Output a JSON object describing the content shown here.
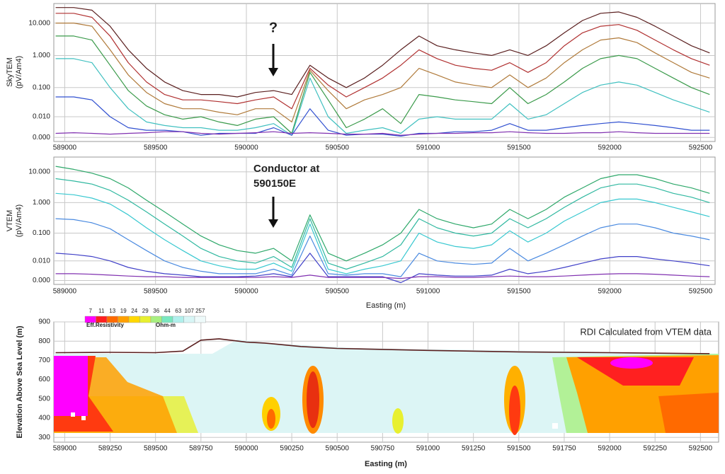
{
  "chart_data": [
    {
      "type": "line",
      "ylabel": [
        "SkyTEM",
        "(pV/Am4)"
      ],
      "annotations": [
        "?"
      ],
      "yscale": "symlog",
      "linthresh": 0.003,
      "grid": true,
      "xlim": [
        588940,
        592580
      ],
      "ylim": [
        -0.001,
        40
      ],
      "xticks": [
        589000,
        589500,
        590000,
        590500,
        591000,
        591500,
        592000,
        592500
      ],
      "yticks": [
        {
          "value": 0,
          "label": "0.000"
        },
        {
          "value": 0.01,
          "label": "0.010"
        },
        {
          "value": 0.1,
          "label": "0.100"
        },
        {
          "value": 1,
          "label": "1.000"
        },
        {
          "value": 10,
          "label": "10.000"
        }
      ],
      "x": [
        588950,
        589050,
        589150,
        589250,
        589350,
        589450,
        589550,
        589650,
        589750,
        589850,
        589950,
        590050,
        590150,
        590250,
        590350,
        590450,
        590550,
        590650,
        590750,
        590850,
        590950,
        591050,
        591150,
        591250,
        591350,
        591450,
        591550,
        591650,
        591750,
        591850,
        591950,
        592050,
        592150,
        592250,
        592350,
        592450,
        592550
      ],
      "series": [
        {
          "color": "#5a1f1f",
          "values": [
            30,
            30,
            25,
            8,
            1.5,
            0.4,
            0.15,
            0.08,
            0.06,
            0.06,
            0.05,
            0.07,
            0.08,
            0.06,
            0.5,
            0.2,
            0.1,
            0.2,
            0.5,
            1.5,
            4,
            2,
            1.5,
            1.2,
            1,
            1.5,
            1,
            2,
            5,
            12,
            20,
            22,
            15,
            8,
            4,
            2,
            1.2
          ]
        },
        {
          "color": "#b03030",
          "values": [
            20,
            20,
            15,
            4,
            0.6,
            0.15,
            0.06,
            0.04,
            0.04,
            0.035,
            0.03,
            0.04,
            0.05,
            0.02,
            0.4,
            0.12,
            0.05,
            0.1,
            0.2,
            0.5,
            1.5,
            0.8,
            0.5,
            0.4,
            0.35,
            0.6,
            0.3,
            0.6,
            2,
            5,
            8,
            9,
            6,
            3,
            1.5,
            0.8,
            0.5
          ]
        },
        {
          "color": "#b07a3a",
          "values": [
            10,
            10,
            8,
            1.5,
            0.25,
            0.07,
            0.03,
            0.02,
            0.02,
            0.015,
            0.012,
            0.02,
            0.02,
            0.006,
            0.35,
            0.08,
            0.02,
            0.04,
            0.06,
            0.1,
            0.4,
            0.25,
            0.15,
            0.12,
            0.1,
            0.25,
            0.1,
            0.2,
            0.6,
            1.5,
            3,
            3.5,
            2.5,
            1.2,
            0.6,
            0.3,
            0.2
          ]
        },
        {
          "color": "#3a9a4a",
          "values": [
            4,
            4,
            3,
            0.5,
            0.08,
            0.025,
            0.012,
            0.008,
            0.01,
            0.006,
            0.004,
            0.008,
            0.01,
            0.001,
            0.3,
            0.04,
            0.003,
            0.008,
            0.02,
            0.005,
            0.06,
            0.05,
            0.04,
            0.035,
            0.03,
            0.1,
            0.03,
            0.06,
            0.15,
            0.4,
            0.8,
            1,
            0.8,
            0.4,
            0.2,
            0.1,
            0.06
          ]
        },
        {
          "color": "#40c0c0",
          "values": [
            0.8,
            0.8,
            0.6,
            0.1,
            0.02,
            0.006,
            0.004,
            0.003,
            0.003,
            0.002,
            0.002,
            0.003,
            0.005,
            0.0005,
            0.2,
            0.01,
            0.001,
            0.002,
            0.003,
            0.001,
            0.008,
            0.01,
            0.008,
            0.008,
            0.008,
            0.03,
            0.008,
            0.012,
            0.03,
            0.07,
            0.12,
            0.15,
            0.12,
            0.07,
            0.04,
            0.025,
            0.015
          ]
        },
        {
          "color": "#3050d0",
          "values": [
            0.05,
            0.05,
            0.04,
            0.01,
            0.003,
            0.002,
            0.002,
            0.0015,
            0.0005,
            0.001,
            0.001,
            0.001,
            0.003,
            0.0005,
            0.02,
            0.002,
            0.0005,
            0.0008,
            0.0008,
            0.0003,
            0.001,
            0.001,
            0.0015,
            0.0015,
            0.002,
            0.005,
            0.002,
            0.002,
            0.003,
            0.004,
            0.005,
            0.006,
            0.005,
            0.004,
            0.003,
            0.002,
            0.002
          ]
        },
        {
          "color": "#8030b0",
          "values": [
            0.001,
            0.0012,
            0.001,
            0.0008,
            0.001,
            0.0012,
            0.0015,
            0.0015,
            0.001,
            0.0008,
            0.001,
            0.0012,
            0.0015,
            0.001,
            0.0012,
            0.001,
            0.0008,
            0.0008,
            0.001,
            0.0005,
            0.0008,
            0.001,
            0.001,
            0.0012,
            0.0012,
            0.0015,
            0.0012,
            0.001,
            0.001,
            0.0012,
            0.0012,
            0.0015,
            0.0012,
            0.001,
            0.001,
            0.001,
            0.001
          ]
        }
      ]
    },
    {
      "type": "line",
      "ylabel": [
        "VTEM",
        "(pV/Am4)"
      ],
      "xlabel": "Easting (m)",
      "annotations": [
        "Conductor at",
        "590150E"
      ],
      "yscale": "symlog",
      "linthresh": 0.003,
      "grid": true,
      "xlim": [
        588940,
        592580
      ],
      "ylim": [
        -0.001,
        30
      ],
      "xticks": [
        589000,
        589500,
        590000,
        590500,
        591000,
        591500,
        592000,
        592500
      ],
      "yticks": [
        {
          "value": 0,
          "label": "0.000"
        },
        {
          "value": 0.01,
          "label": "0.010"
        },
        {
          "value": 0.1,
          "label": "0.100"
        },
        {
          "value": 1,
          "label": "1.000"
        },
        {
          "value": 10,
          "label": "10.000"
        }
      ],
      "x": [
        588950,
        589050,
        589150,
        589250,
        589350,
        589450,
        589550,
        589650,
        589750,
        589850,
        589950,
        590050,
        590150,
        590250,
        590350,
        590450,
        590550,
        590650,
        590750,
        590850,
        590950,
        591050,
        591150,
        591250,
        591350,
        591450,
        591550,
        591650,
        591750,
        591850,
        591950,
        592050,
        592150,
        592250,
        592350,
        592450,
        592550
      ],
      "series": [
        {
          "color": "#2ea86a",
          "values": [
            15,
            12,
            9,
            6,
            3,
            1.2,
            0.5,
            0.2,
            0.08,
            0.04,
            0.025,
            0.02,
            0.03,
            0.01,
            0.4,
            0.02,
            0.01,
            0.02,
            0.04,
            0.1,
            0.6,
            0.3,
            0.2,
            0.15,
            0.2,
            0.6,
            0.3,
            0.6,
            1.5,
            3,
            6,
            8,
            8,
            6,
            4,
            3,
            2
          ]
        },
        {
          "color": "#30b8a0",
          "values": [
            6,
            5,
            4,
            2.5,
            1.2,
            0.5,
            0.2,
            0.08,
            0.03,
            0.015,
            0.01,
            0.008,
            0.015,
            0.005,
            0.3,
            0.008,
            0.004,
            0.008,
            0.015,
            0.04,
            0.3,
            0.15,
            0.1,
            0.08,
            0.1,
            0.3,
            0.15,
            0.3,
            0.7,
            1.5,
            3,
            4,
            4,
            3,
            2,
            1.5,
            1
          ]
        },
        {
          "color": "#38c8d0",
          "values": [
            2,
            1.8,
            1.4,
            0.9,
            0.4,
            0.15,
            0.06,
            0.025,
            0.01,
            0.006,
            0.004,
            0.004,
            0.008,
            0.003,
            0.2,
            0.004,
            0.002,
            0.004,
            0.006,
            0.01,
            0.1,
            0.05,
            0.035,
            0.03,
            0.04,
            0.12,
            0.05,
            0.1,
            0.25,
            0.5,
            1,
            1.3,
            1.3,
            1,
            0.7,
            0.5,
            0.35
          ]
        },
        {
          "color": "#4a8ae0",
          "values": [
            0.3,
            0.28,
            0.22,
            0.14,
            0.06,
            0.025,
            0.01,
            0.005,
            0.003,
            0.002,
            0.002,
            0.002,
            0.004,
            0.0015,
            0.08,
            0.002,
            0.0015,
            0.002,
            0.002,
            0.001,
            0.02,
            0.01,
            0.008,
            0.007,
            0.008,
            0.03,
            0.01,
            0.02,
            0.04,
            0.08,
            0.15,
            0.2,
            0.2,
            0.15,
            0.1,
            0.08,
            0.06
          ]
        },
        {
          "color": "#4040c8",
          "values": [
            0.02,
            0.018,
            0.015,
            0.01,
            0.005,
            0.003,
            0.002,
            0.0015,
            0.001,
            0.001,
            0.001,
            0.0012,
            0.002,
            0.001,
            0.02,
            0.001,
            0.001,
            0.001,
            0.001,
            -0.0005,
            0.002,
            0.0015,
            0.0012,
            0.0012,
            0.0015,
            0.004,
            0.002,
            0.003,
            0.005,
            0.008,
            0.012,
            0.015,
            0.015,
            0.012,
            0.01,
            0.008,
            0.006
          ]
        },
        {
          "color": "#8030b0",
          "values": [
            0.002,
            0.002,
            0.0018,
            0.0015,
            0.0012,
            0.001,
            0.001,
            0.0008,
            0.0008,
            0.0008,
            0.0008,
            0.0008,
            0.001,
            0.0008,
            0.0015,
            0.0008,
            0.0008,
            0.0008,
            0.0008,
            0.0005,
            0.001,
            0.001,
            0.0008,
            0.0008,
            0.001,
            0.0012,
            0.001,
            0.001,
            0.0012,
            0.0015,
            0.0018,
            0.002,
            0.002,
            0.0018,
            0.0015,
            0.0012,
            0.001
          ]
        }
      ]
    },
    {
      "type": "line",
      "title": "RDI Calculated from VTEM data",
      "ylabel": [
        "Elevation Above Sea Level (m)"
      ],
      "xlabel": "Easting (m)",
      "yscale": "linear",
      "grid": true,
      "xlim": [
        588940,
        592600
      ],
      "ylim": [
        275,
        900
      ],
      "xticks": [
        589000,
        589250,
        589500,
        589750,
        590000,
        590250,
        590500,
        590750,
        591000,
        591250,
        591500,
        591750,
        592000,
        592250,
        592500
      ],
      "yticks": [
        300,
        400,
        500,
        600,
        700,
        800,
        900
      ],
      "colorbar": {
        "label": "Eff.Resistivity",
        "unit": "Ohm-m",
        "ticks": [
          7,
          11,
          13,
          19,
          24,
          29,
          36,
          44,
          63,
          107,
          257
        ],
        "colors": [
          "#ff00ff",
          "#ff2020",
          "#ff6a00",
          "#ffa000",
          "#ffd800",
          "#e8f030",
          "#a8f080",
          "#7ae8c0",
          "#b0f0ec",
          "#d8f6f6",
          "#eefafa"
        ]
      },
      "x": [
        588950,
        589250,
        589500,
        589650,
        589750,
        589850,
        590000,
        590100,
        590300,
        590500,
        591000,
        591500,
        592000,
        592550
      ],
      "series": [
        {
          "color": "#5a1f1f",
          "values": [
            740,
            742,
            740,
            748,
            805,
            812,
            795,
            790,
            772,
            762,
            752,
            744,
            740,
            735
          ]
        }
      ]
    }
  ]
}
